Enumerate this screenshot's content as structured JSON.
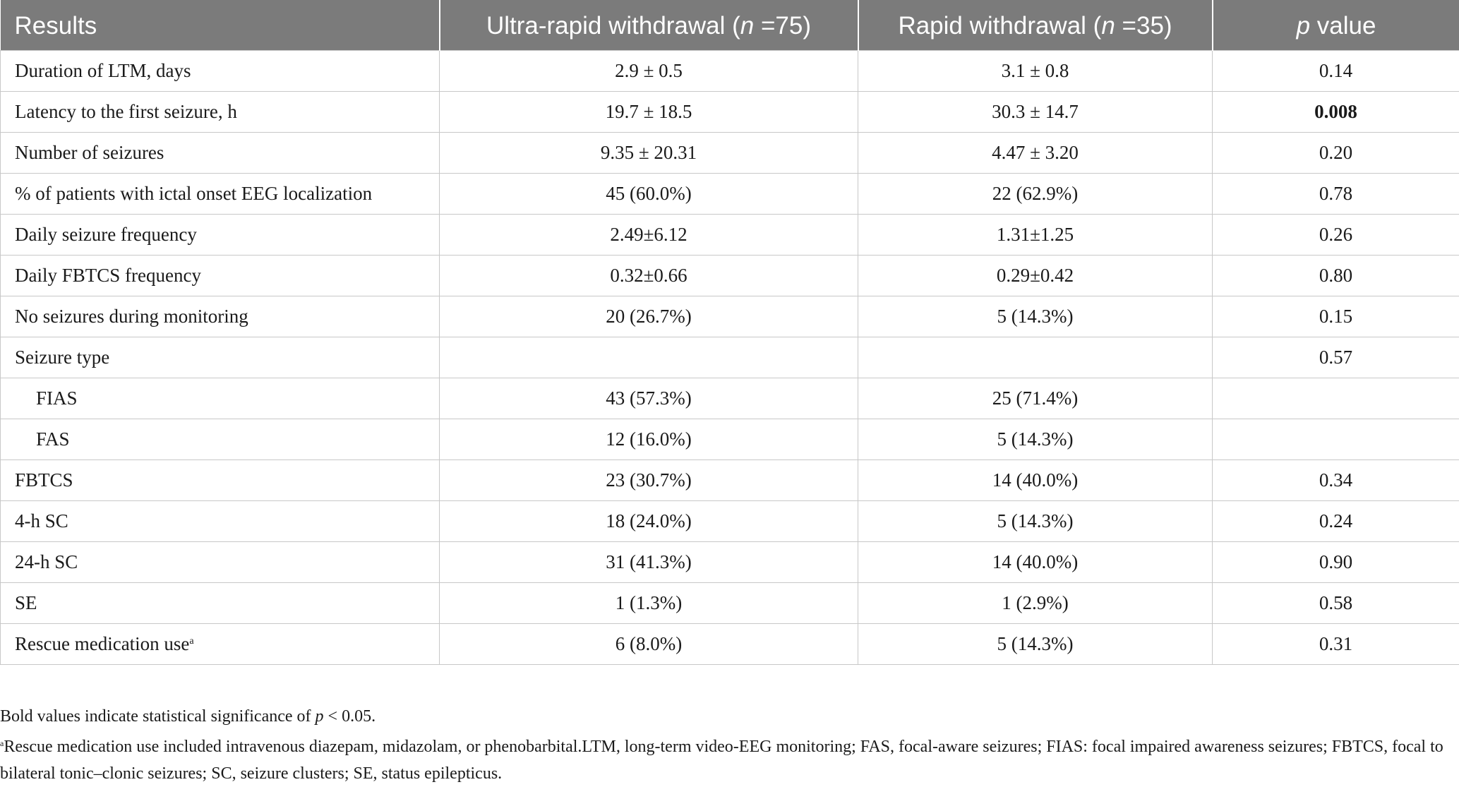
{
  "table": {
    "headers": {
      "results": "Results",
      "ultra_pre": "Ultra-rapid withdrawal (",
      "ultra_n": "n",
      "ultra_post": " =75)",
      "rapid_pre": "Rapid withdrawal (",
      "rapid_n": "n",
      "rapid_post": " =35)",
      "p_italic": "p",
      "p_rest": " value"
    },
    "rows": [
      {
        "label": "Duration of LTM, days",
        "ultra": "2.9 ± 0.5",
        "rapid": "3.1 ± 0.8",
        "p": "0.14"
      },
      {
        "label": "Latency to the first seizure, h",
        "ultra": "19.7 ± 18.5",
        "rapid": "30.3 ± 14.7",
        "p": "0.008"
      },
      {
        "label": "Number of seizures",
        "ultra": "9.35 ± 20.31",
        "rapid": "4.47 ± 3.20",
        "p": "0.20"
      },
      {
        "label": "% of patients with ictal onset EEG localization",
        "ultra": "45 (60.0%)",
        "rapid": "22 (62.9%)",
        "p": "0.78"
      },
      {
        "label": "Daily seizure frequency",
        "ultra": "2.49±6.12",
        "rapid": "1.31±1.25",
        "p": "0.26"
      },
      {
        "label": "Daily FBTCS frequency",
        "ultra": "0.32±0.66",
        "rapid": "0.29±0.42",
        "p": "0.80"
      },
      {
        "label": "No seizures during monitoring",
        "ultra": "20 (26.7%)",
        "rapid": "5 (14.3%)",
        "p": "0.15"
      },
      {
        "label": "Seizure type",
        "ultra": "",
        "rapid": "",
        "p": "0.57"
      },
      {
        "label": "FIAS",
        "ultra": "43 (57.3%)",
        "rapid": "25 (71.4%)",
        "p": ""
      },
      {
        "label": "FAS",
        "ultra": "12 (16.0%)",
        "rapid": "5 (14.3%)",
        "p": ""
      },
      {
        "label": "FBTCS",
        "ultra": "23 (30.7%)",
        "rapid": "14 (40.0%)",
        "p": "0.34"
      },
      {
        "label": "4-h SC",
        "ultra": "18 (24.0%)",
        "rapid": "5 (14.3%)",
        "p": "0.24"
      },
      {
        "label": "24-h SC",
        "ultra": "31 (41.3%)",
        "rapid": "14 (40.0%)",
        "p": "0.90"
      },
      {
        "label": "SE",
        "ultra": "1 (1.3%)",
        "rapid": "1 (2.9%)",
        "p": "0.58"
      },
      {
        "label": "Rescue medication use",
        "label_sup": "a",
        "ultra": "6 (8.0%)",
        "rapid": "5 (14.3%)",
        "p": "0.31"
      }
    ]
  },
  "footnotes": {
    "bold_pre": "Bold values indicate statistical significance of ",
    "bold_italic": "p",
    "bold_post": " < 0.05.",
    "rescue_sup": "a",
    "rescue_text": "Rescue medication use included intravenous diazepam, midazolam, or phenobarbital.LTM, long-term video-EEG monitoring; FAS, focal-aware seizures; FIAS: focal impaired awareness seizures; FBTCS, focal to bilateral tonic–clonic seizures; SC, seizure clusters; SE, status epilepticus."
  }
}
